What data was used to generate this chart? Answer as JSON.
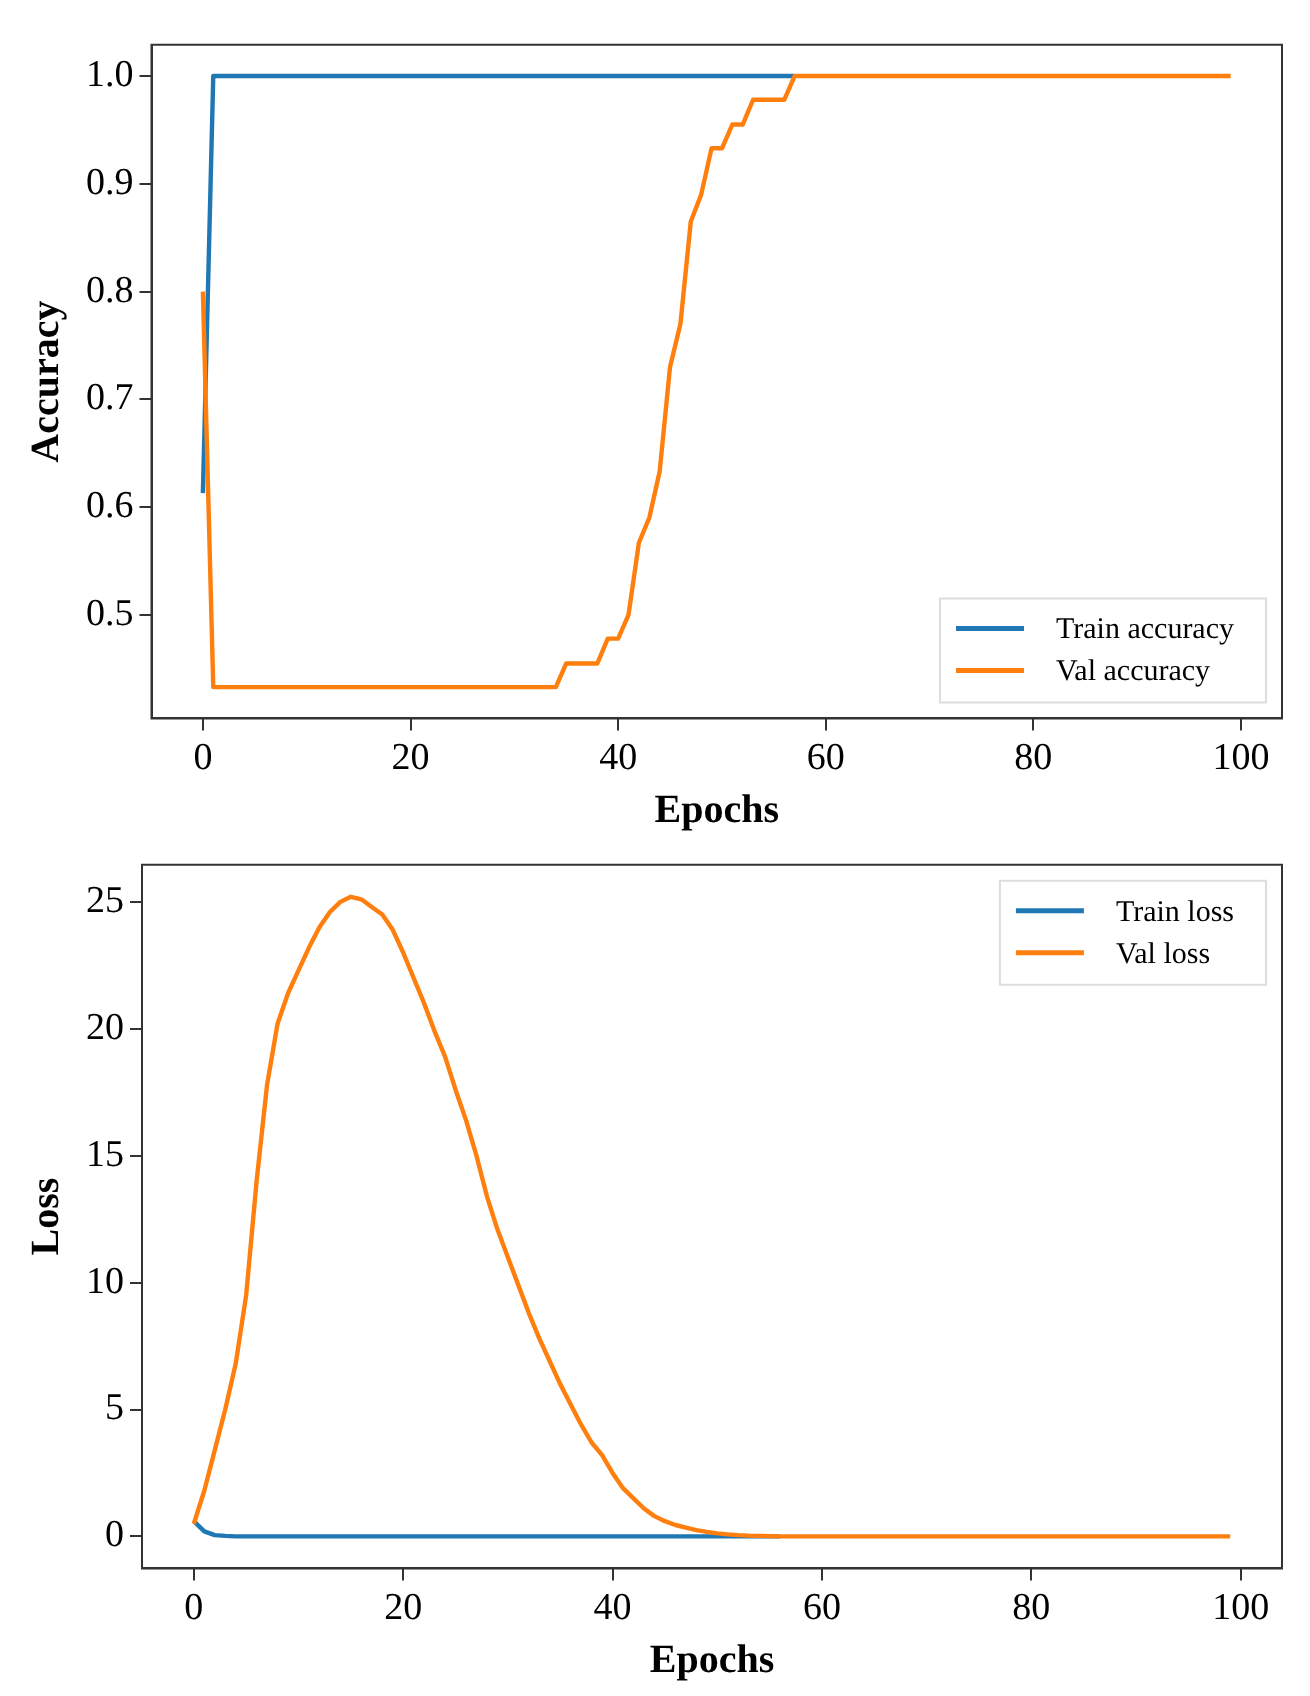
{
  "chart_data": [
    {
      "type": "line",
      "xlabel": "Epochs",
      "ylabel": "Accuracy",
      "xlim": [
        -4.95,
        103.95
      ],
      "ylim": [
        0.404,
        1.029
      ],
      "xticks": [
        0,
        20,
        40,
        60,
        80,
        100
      ],
      "yticks": [
        {
          "value": 0.5,
          "label": "0.5"
        },
        {
          "value": 0.6,
          "label": "0.6"
        },
        {
          "value": 0.7,
          "label": "0.7"
        },
        {
          "value": 0.8,
          "label": "0.8"
        },
        {
          "value": 0.9,
          "label": "0.9"
        },
        {
          "value": 1.0,
          "label": "1.0"
        }
      ],
      "legend": "bottom right",
      "grid": false,
      "x": [
        0,
        1,
        2,
        3,
        4,
        5,
        6,
        7,
        8,
        9,
        10,
        11,
        12,
        13,
        14,
        15,
        16,
        17,
        18,
        19,
        20,
        21,
        22,
        23,
        24,
        25,
        26,
        27,
        28,
        29,
        30,
        31,
        32,
        33,
        34,
        35,
        36,
        37,
        38,
        39,
        40,
        41,
        42,
        43,
        44,
        45,
        46,
        47,
        48,
        49,
        50,
        51,
        52,
        53,
        54,
        55,
        56,
        57,
        58,
        59,
        60,
        61,
        62,
        63,
        64,
        65,
        66,
        67,
        68,
        69,
        70,
        71,
        72,
        73,
        74,
        75,
        76,
        77,
        78,
        79,
        80,
        81,
        82,
        83,
        84,
        85,
        86,
        87,
        88,
        89,
        90,
        91,
        92,
        93,
        94,
        95,
        96,
        97,
        98,
        99
      ],
      "series": [
        {
          "name": "Train accuracy",
          "color": "#1f77b4",
          "values": [
            0.613,
            1,
            1,
            1,
            1,
            1,
            1,
            1,
            1,
            1,
            1,
            1,
            1,
            1,
            1,
            1,
            1,
            1,
            1,
            1,
            1,
            1,
            1,
            1,
            1,
            1,
            1,
            1,
            1,
            1,
            1,
            1,
            1,
            1,
            1,
            1,
            1,
            1,
            1,
            1,
            1,
            1,
            1,
            1,
            1,
            1,
            1,
            1,
            1,
            1,
            1,
            1,
            1,
            1,
            1,
            1,
            1,
            1,
            null,
            null,
            null,
            null,
            null,
            null,
            null,
            null,
            null,
            null,
            null,
            null,
            null,
            null,
            null,
            null,
            null,
            null,
            null,
            null,
            null,
            null,
            null,
            null,
            null,
            null,
            null,
            null,
            null,
            null,
            null,
            null,
            null,
            null,
            null,
            null,
            null,
            null,
            null,
            null,
            null,
            null
          ]
        },
        {
          "name": "Val accuracy",
          "color": "#ff7f0e",
          "values": [
            0.8,
            0.433,
            0.433,
            0.433,
            0.433,
            0.433,
            0.433,
            0.433,
            0.433,
            0.433,
            0.433,
            0.433,
            0.433,
            0.433,
            0.433,
            0.433,
            0.433,
            0.433,
            0.433,
            0.433,
            0.433,
            0.433,
            0.433,
            0.433,
            0.433,
            0.433,
            0.433,
            0.433,
            0.433,
            0.433,
            0.433,
            0.433,
            0.433,
            0.433,
            0.433,
            0.455,
            0.455,
            0.455,
            0.455,
            0.478,
            0.478,
            0.5,
            0.567,
            0.59,
            0.633,
            0.73,
            0.77,
            0.865,
            0.89,
            0.933,
            0.933,
            0.955,
            0.955,
            0.978,
            0.978,
            0.978,
            0.978,
            1,
            1,
            1,
            1,
            1,
            1,
            1,
            1,
            1,
            1,
            1,
            1,
            1,
            1,
            1,
            1,
            1,
            1,
            1,
            1,
            1,
            1,
            1,
            1,
            1,
            1,
            1,
            1,
            1,
            1,
            1,
            1,
            1,
            1,
            1,
            1,
            1,
            1,
            1,
            1,
            1,
            1,
            1
          ]
        }
      ]
    },
    {
      "type": "line",
      "xlabel": "Epochs",
      "ylabel": "Loss",
      "xlim": [
        -4.95,
        103.95
      ],
      "ylim": [
        -1.26,
        26.46
      ],
      "xticks": [
        0,
        20,
        40,
        60,
        80,
        100
      ],
      "yticks": [
        0,
        5,
        10,
        15,
        20,
        25
      ],
      "legend": "top right",
      "grid": false,
      "x": [
        0,
        1,
        2,
        3,
        4,
        5,
        6,
        7,
        8,
        9,
        10,
        11,
        12,
        13,
        14,
        15,
        16,
        17,
        18,
        19,
        20,
        21,
        22,
        23,
        24,
        25,
        26,
        27,
        28,
        29,
        30,
        31,
        32,
        33,
        34,
        35,
        36,
        37,
        38,
        39,
        40,
        41,
        42,
        43,
        44,
        45,
        46,
        47,
        48,
        49,
        50,
        51,
        52,
        53,
        54,
        55,
        56,
        57,
        58,
        59,
        60,
        61,
        62,
        63,
        64,
        65,
        66,
        67,
        68,
        69,
        70,
        71,
        72,
        73,
        74,
        75,
        76,
        77,
        78,
        79,
        80,
        81,
        82,
        83,
        84,
        85,
        86,
        87,
        88,
        89,
        90,
        91,
        92,
        93,
        94,
        95,
        96,
        97,
        98,
        99
      ],
      "series": [
        {
          "name": "Train loss",
          "color": "#1f77b4",
          "values": [
            0.6,
            0.2,
            0.05,
            0.02,
            0,
            0,
            0,
            0,
            0,
            0,
            0,
            0,
            0,
            0,
            0,
            0,
            0,
            0,
            0,
            0,
            0,
            0,
            0,
            0,
            0,
            0,
            0,
            0,
            0,
            0,
            0,
            0,
            0,
            0,
            0,
            0,
            0,
            0,
            0,
            0,
            0,
            0,
            0,
            0,
            0,
            0,
            0,
            0,
            0,
            0,
            0,
            0,
            0,
            0,
            0,
            0,
            0,
            null,
            null,
            null,
            null,
            null,
            null,
            null,
            null,
            null,
            null,
            null,
            null,
            null,
            null,
            null,
            null,
            null,
            null,
            null,
            null,
            null,
            null,
            null,
            null,
            null,
            null,
            null,
            null,
            null,
            null,
            null,
            null,
            null,
            null,
            null,
            null,
            null,
            null,
            null,
            null,
            null,
            null,
            null
          ]
        },
        {
          "name": "Val loss",
          "color": "#ff7f0e",
          "values": [
            0.5,
            1.8,
            3.4,
            5,
            6.8,
            9.5,
            14,
            17.8,
            20.2,
            21.4,
            22.3,
            23.2,
            24,
            24.6,
            25,
            25.2,
            25.1,
            24.8,
            24.5,
            23.9,
            23,
            22,
            21,
            19.9,
            18.9,
            17.6,
            16.4,
            15,
            13.4,
            12.1,
            11,
            9.9,
            8.8,
            7.8,
            6.9,
            6,
            5.2,
            4.4,
            3.7,
            3.2,
            2.5,
            1.9,
            1.5,
            1.1,
            0.8,
            0.6,
            0.45,
            0.35,
            0.25,
            0.18,
            0.12,
            0.08,
            0.05,
            0.03,
            0.02,
            0.01,
            0,
            0,
            0,
            0,
            0,
            0,
            0,
            0,
            0,
            0,
            0,
            0,
            0,
            0,
            0,
            0,
            0,
            0,
            0,
            0,
            0,
            0,
            0,
            0,
            0,
            0,
            0,
            0,
            0,
            0,
            0,
            0,
            0,
            0,
            0,
            0,
            0,
            0,
            0,
            0,
            0,
            0,
            0,
            0
          ]
        }
      ]
    }
  ]
}
